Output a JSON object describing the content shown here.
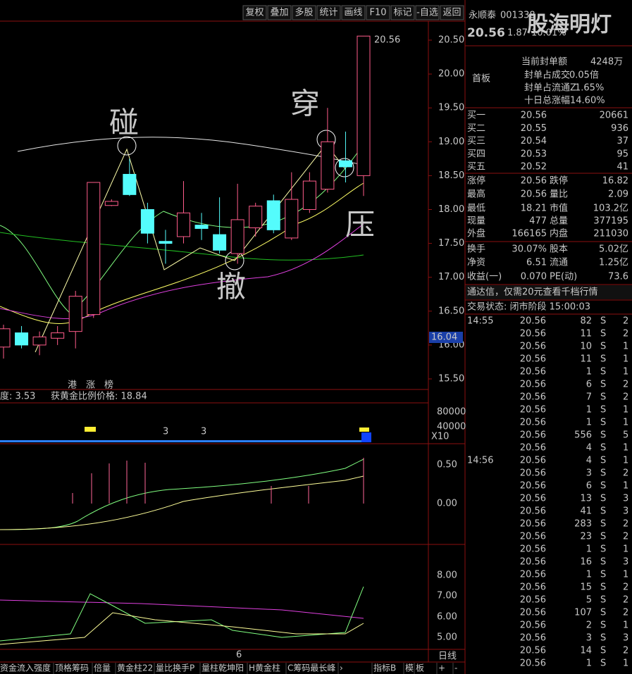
{
  "toolbar": [
    "复权",
    "叠加",
    "多股",
    "统计",
    "画线",
    "F10",
    "标记",
    "-自选",
    "返回"
  ],
  "chart": {
    "annotations": {
      "touch": "碰",
      "pierce": "穿",
      "withdraw": "撤",
      "press": "压"
    },
    "high_label": "20.56",
    "axis_price": "16.04",
    "tags": [
      "港",
      "涨",
      "榜"
    ],
    "price_ticks": [
      {
        "value": 20.5,
        "label": "20.50"
      },
      {
        "value": 20,
        "label": "20.00"
      },
      {
        "value": 19.5,
        "label": "19.50"
      },
      {
        "value": 19,
        "label": "19.00"
      },
      {
        "value": 18.5,
        "label": "18.50"
      },
      {
        "value": 18,
        "label": "18.00"
      },
      {
        "value": 17.5,
        "label": "17.50"
      },
      {
        "value": 17,
        "label": "17.00"
      },
      {
        "value": 16.5,
        "label": "16.50"
      },
      {
        "value": 16,
        "label": "16.00"
      },
      {
        "value": 15.5,
        "label": "15.50"
      }
    ],
    "candles": [
      {
        "open": 15.97,
        "high": 16.3,
        "low": 15.8,
        "close": 16.24
      },
      {
        "open": 16.18,
        "high": 16.28,
        "low": 15.95,
        "close": 16.0
      },
      {
        "open": 16.0,
        "high": 16.2,
        "low": 15.85,
        "close": 16.12
      },
      {
        "open": 16.1,
        "high": 16.28,
        "low": 16.0,
        "close": 16.18
      },
      {
        "open": 16.2,
        "high": 16.8,
        "low": 15.95,
        "close": 16.72
      },
      {
        "open": 16.45,
        "high": 18.4,
        "low": 16.4,
        "close": 18.4
      },
      {
        "open": 18.06,
        "high": 18.15,
        "low": 18.05,
        "close": 18.12
      },
      {
        "open": 18.52,
        "high": 18.75,
        "low": 18.2,
        "close": 18.22
      },
      {
        "open": 18.0,
        "high": 18.1,
        "low": 17.5,
        "close": 17.65
      },
      {
        "open": 17.53,
        "high": 17.7,
        "low": 17.2,
        "close": 17.5
      },
      {
        "open": 17.6,
        "high": 18.42,
        "low": 17.5,
        "close": 17.95
      },
      {
        "open": 17.77,
        "high": 17.95,
        "low": 17.55,
        "close": 17.72
      },
      {
        "open": 17.63,
        "high": 18.18,
        "low": 17.35,
        "close": 17.4
      },
      {
        "open": 17.35,
        "high": 18.38,
        "low": 17.2,
        "close": 17.85
      },
      {
        "open": 17.73,
        "high": 18.1,
        "low": 17.6,
        "close": 18.05
      },
      {
        "open": 18.13,
        "high": 18.22,
        "low": 17.65,
        "close": 17.7
      },
      {
        "open": 17.58,
        "high": 18.55,
        "low": 17.55,
        "close": 18.15
      },
      {
        "open": 18.0,
        "high": 18.55,
        "low": 17.95,
        "close": 18.42
      },
      {
        "open": 18.3,
        "high": 19.5,
        "low": 18.25,
        "close": 19.0
      },
      {
        "open": 18.72,
        "high": 19.15,
        "low": 18.4,
        "close": 18.63
      },
      {
        "open": 18.5,
        "high": 20.56,
        "low": 18.2,
        "close": 20.56
      }
    ],
    "indicator_text": [
      "度: 3.53",
      "获黄金比例价格: 18.84"
    ],
    "volume_marks": [
      "3",
      "3"
    ],
    "volume_ticks": [
      "80000",
      "40000",
      "X10"
    ],
    "macd_ticks": [
      "0.50",
      "0.00"
    ],
    "kdj_ticks": [
      "8.00",
      "7.00",
      "6.00",
      "5.00"
    ],
    "period_index": "6",
    "period": "日线"
  },
  "quote": {
    "name": "永顺泰",
    "code": "001338",
    "price": "20.56",
    "change": "1.87",
    "pct": "10.01%",
    "watermark": "股海明灯",
    "seal_amount": [
      "当前封单额",
      "4248万"
    ],
    "board": "首板",
    "info": [
      [
        "封单占成交",
        "0.05倍"
      ],
      [
        "封单占流通Z",
        "1.65%"
      ],
      [
        "十日总涨幅",
        "14.60%"
      ]
    ],
    "book": [
      [
        "买一",
        "20.56",
        "20661"
      ],
      [
        "买二",
        "20.55",
        "936"
      ],
      [
        "买三",
        "20.54",
        "37"
      ],
      [
        "买四",
        "20.53",
        "95"
      ],
      [
        "买五",
        "20.52",
        "41"
      ]
    ],
    "stats": [
      [
        "涨停",
        "20.56",
        "跌停",
        "16.82"
      ],
      [
        "最高",
        "20.56",
        "量比",
        "2.09"
      ],
      [
        "最低",
        "18.21",
        "市值",
        "103.2亿"
      ],
      [
        "现量",
        "477",
        "总量",
        "377195"
      ],
      [
        "外盘",
        "166165",
        "内盘",
        "211030"
      ],
      [
        "换手",
        "30.07%",
        "股本",
        "5.02亿"
      ],
      [
        "净资",
        "6.51",
        "流通",
        "1.25亿"
      ],
      [
        "收益(一)",
        "0.070",
        "PE(动)",
        "73.6"
      ]
    ],
    "banner": "通达信，仅需20元查看千档行情",
    "status": "交易状态: 闭市阶段 15:00:03"
  },
  "ticks": [
    {
      "time": "14:55",
      "rows": [
        [
          "20.56",
          "82",
          "S",
          "2"
        ],
        [
          "20.56",
          "11",
          "S",
          "2"
        ],
        [
          "20.56",
          "10",
          "S",
          "1"
        ],
        [
          "20.56",
          "11",
          "S",
          "1"
        ],
        [
          "20.56",
          "1",
          "S",
          "1"
        ],
        [
          "20.56",
          "6",
          "S",
          "2"
        ],
        [
          "20.56",
          "7",
          "S",
          "2"
        ],
        [
          "20.56",
          "1",
          "S",
          "1"
        ],
        [
          "20.56",
          "1",
          "S",
          "1"
        ],
        [
          "20.56",
          "556",
          "S",
          "5"
        ],
        [
          "20.56",
          "4",
          "S",
          "1"
        ]
      ]
    },
    {
      "time": "14:56",
      "rows": [
        [
          "20.56",
          "4",
          "S",
          "1"
        ],
        [
          "20.56",
          "3",
          "S",
          "2"
        ],
        [
          "20.56",
          "6",
          "S",
          "1"
        ],
        [
          "20.56",
          "13",
          "S",
          "3"
        ],
        [
          "20.56",
          "41",
          "S",
          "3"
        ],
        [
          "20.56",
          "283",
          "S",
          "2"
        ],
        [
          "20.56",
          "23",
          "S",
          "2"
        ],
        [
          "20.56",
          "1",
          "S",
          "1"
        ],
        [
          "20.56",
          "16",
          "S",
          "3"
        ],
        [
          "20.56",
          "1",
          "S",
          "1"
        ],
        [
          "20.56",
          "15",
          "S",
          "2"
        ],
        [
          "20.56",
          "5",
          "S",
          "2"
        ],
        [
          "20.56",
          "107",
          "S",
          "2"
        ],
        [
          "20.56",
          "2",
          "S",
          "1"
        ],
        [
          "20.56",
          "3",
          "S",
          "3"
        ],
        [
          "20.56",
          "14",
          "S",
          "2"
        ],
        [
          "20.56",
          "1",
          "S",
          "1"
        ]
      ]
    }
  ],
  "tabs": [
    "资金流入强度",
    "顶格筹码",
    "倍量",
    "黄金柱22",
    "量比换手P",
    "量柱乾坤阳",
    "H黄金柱",
    "C筹码最长峰",
    "›",
    "指标B",
    "模",
    "板",
    "+",
    "-"
  ]
}
